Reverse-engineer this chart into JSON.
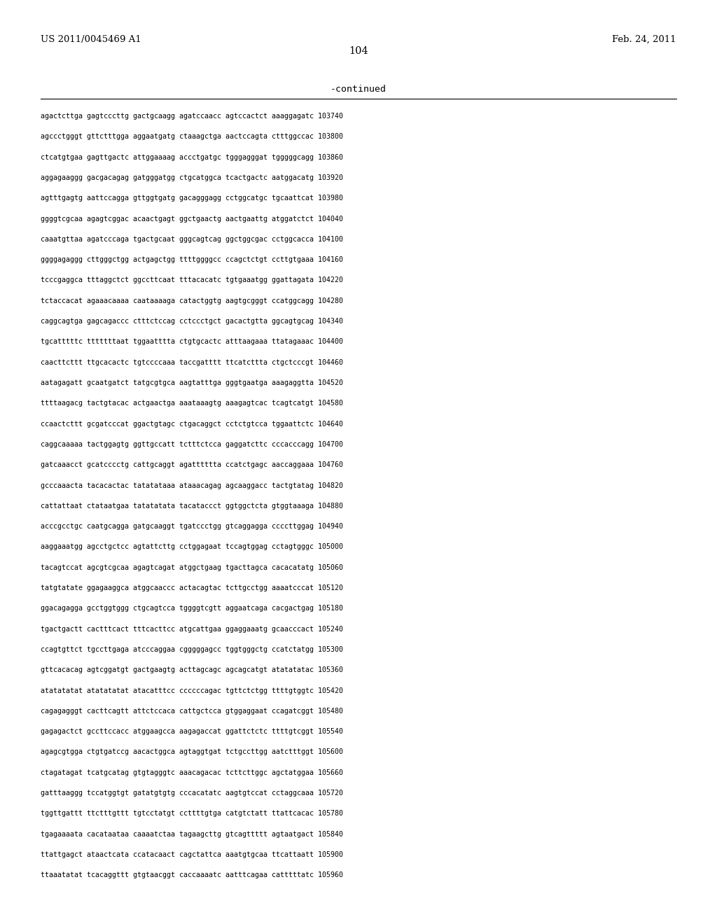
{
  "header_left": "US 2011/0045469 A1",
  "header_right": "Feb. 24, 2011",
  "page_number": "104",
  "continued_label": "-continued",
  "background_color": "#ffffff",
  "text_color": "#000000",
  "font_size_header": 9.5,
  "font_size_page": 10.5,
  "font_size_continued": 9.5,
  "font_size_sequence": 7.2,
  "sequence_lines": [
    "agactcttga gagtcccttg gactgcaagg agatccaacc agtccactct aaaggagatc 103740",
    "agccctgggt gttctttgga aggaatgatg ctaaagctga aactccagta ctttggccac 103800",
    "ctcatgtgaa gagttgactc attggaaaag accctgatgc tgggagggat tgggggcagg 103860",
    "aggagaaggg gacgacagag gatgggatgg ctgcatggca tcactgactc aatggacatg 103920",
    "agtttgagtg aattccagga gttggtgatg gacagggagg cctggcatgc tgcaattcat 103980",
    "ggggtcgcaa agagtcggac acaactgagt ggctgaactg aactgaattg atggatctct 104040",
    "caaatgttaa agatcccaga tgactgcaat gggcagtcag ggctggcgac cctggcacca 104100",
    "ggggagaggg cttgggctgg actgagctgg ttttggggcc ccagctctgt ccttgtgaaa 104160",
    "tcccgaggca tttaggctct ggccttcaat tttacacatc tgtgaaatgg ggattagata 104220",
    "tctaccacat agaaacaaaa caataaaaga catactggtg aagtgcgggt ccatggcagg 104280",
    "caggcagtga gagcagaccc ctttctccag cctccctgct gacactgtta ggcagtgcag 104340",
    "tgcatttttc tttttttaat tggaatttta ctgtgcactc atttaagaaa ttatagaaac 104400",
    "caacttcttt ttgcacactc tgtccccaaa taccgatttt ttcatcttta ctgctcccgt 104460",
    "aatagagatt gcaatgatct tatgcgtgca aagtatttga gggtgaatga aaagaggtta 104520",
    "ttttaagacg tactgtacac actgaactga aaataaagtg aaagagtcac tcagtcatgt 104580",
    "ccaactcttt gcgatcccat ggactgtagc ctgacaggct cctctgtcca tggaattctc 104640",
    "caggcaaaaa tactggagtg ggttgccatt tctttctcca gaggatcttc cccacccagg 104700",
    "gatcaaacct gcatcccctg cattgcaggt agatttttta ccatctgagc aaccaggaaa 104760",
    "gcccaaacta tacacactac tatatataaa ataaacagag agcaaggacc tactgtatag 104820",
    "cattattaat ctataatgaa tatatatata tacataccct ggtggctcta gtggtaaaga 104880",
    "acccgcctgc caatgcagga gatgcaaggt tgatccctgg gtcaggagga ccccttggag 104940",
    "aaggaaatgg agcctgctcc agtattcttg cctggagaat tccagtggag cctagtgggc 105000",
    "tacagtccat agcgtcgcaa agagtcagat atggctgaag tgacttagca cacacatatg 105060",
    "tatgtatate ggagaaggca atggcaaccc actacagtac tcttgcctgg aaaatcccat 105120",
    "ggacagagga gcctggtggg ctgcagtcca tggggtcgtt aggaatcaga cacgactgag 105180",
    "tgactgactt cactttcact tttcacttcc atgcattgaa ggaggaaatg gcaacccact 105240",
    "ccagtgttct tgccttgaga atcccaggaa cgggggagcc tggtgggctg ccatctatgg 105300",
    "gttcacacag agtcggatgt gactgaagtg acttagcagc agcagcatgt atatatatac 105360",
    "atatatatat atatatatat atacatttcc ccccccagac tgttctctgg ttttgtggtc 105420",
    "cagagagggt cacttcagtt attctccaca cattgctcca gtggaggaat ccagatcggt 105480",
    "gagagactct gccttccacc atggaagcca aagagaccat ggattctctc ttttgtcggt 105540",
    "agagcgtgga ctgtgatccg aacactggca agtaggtgat tctgccttgg aatctttggt 105600",
    "ctagatagat tcatgcatag gtgtagggtc aaacagacac tcttcttggc agctatggaa 105660",
    "gatttaaggg tccatggtgt gatatgtgtg cccacatatc aagtgtccat cctaggcaaa 105720",
    "tggttgattt ttctttgttt tgtcctatgt ccttttgtga catgtctatt ttattcacac 105780",
    "tgagaaaata cacataataa caaaatctaa tagaagcttg gtcagttttt agtaatgact 105840",
    "ttattgagct ataactcata ccatacaact cagctattca aaatgtgcaa ttcattaatt 105900",
    "ttaaatatat tcacaggttt gtgtaacggt caccaaaatc aatttcagaa catttttatc 105960"
  ]
}
